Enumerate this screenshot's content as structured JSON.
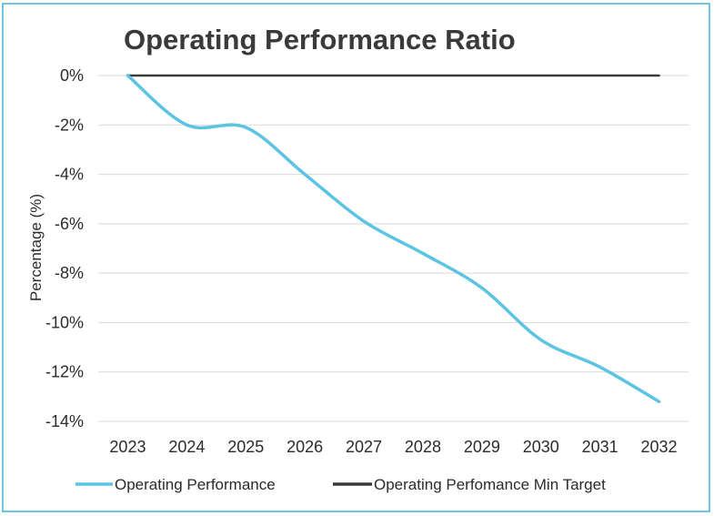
{
  "chart_data": {
    "type": "line",
    "title": "Operating Performance Ratio",
    "xlabel": "",
    "ylabel": "Percentage (%)",
    "x": [
      "2023",
      "2024",
      "2025",
      "2026",
      "2027",
      "2028",
      "2029",
      "2030",
      "2031",
      "2032"
    ],
    "ylim": [
      -14,
      0
    ],
    "yticks": [
      "0%",
      "-2%",
      "-4%",
      "-6%",
      "-8%",
      "-10%",
      "-12%",
      "-14%"
    ],
    "grid": true,
    "legend_position": "bottom",
    "series": [
      {
        "name": "Operating Performance",
        "color": "#5bc4e2",
        "values": [
          0,
          -2.0,
          -2.1,
          -4.0,
          -5.9,
          -7.2,
          -8.6,
          -10.7,
          -11.8,
          -13.2
        ]
      },
      {
        "name": "Operating Perfomance Min Target",
        "color": "#3a3a3a",
        "values": [
          0,
          0,
          0,
          0,
          0,
          0,
          0,
          0,
          0,
          0
        ]
      }
    ]
  },
  "colors": {
    "frame": "#6fc7df",
    "grid": "#d9d9d9",
    "text": "#2b2b2b"
  }
}
